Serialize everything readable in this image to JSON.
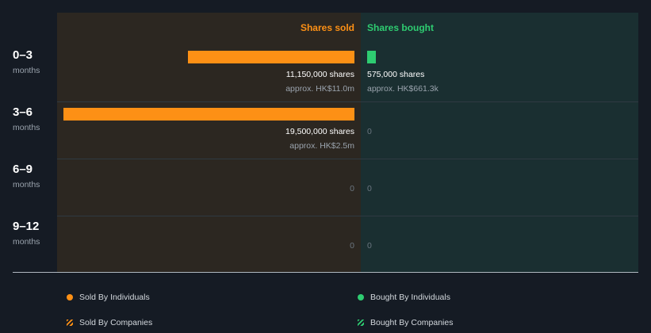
{
  "chart_data": {
    "type": "bar",
    "title": "",
    "headers": {
      "sold": "Shares sold",
      "bought": "Shares bought"
    },
    "colors": {
      "sold": "#fd9015",
      "bought": "#2ecc71"
    },
    "max_value": 19500000,
    "rows": [
      {
        "range": "0–3",
        "unit": "months",
        "sold": 11150000,
        "sold_label": "11,150,000 shares",
        "sold_sub": "approx. HK$11.0m",
        "bought": 575000,
        "bought_label": "575,000 shares",
        "bought_sub": "approx. HK$661.3k"
      },
      {
        "range": "3–6",
        "unit": "months",
        "sold": 19500000,
        "sold_label": "19,500,000 shares",
        "sold_sub": "approx. HK$2.5m",
        "bought": 0,
        "bought_label": "0",
        "bought_sub": ""
      },
      {
        "range": "6–9",
        "unit": "months",
        "sold": 0,
        "sold_label": "0",
        "sold_sub": "",
        "bought": 0,
        "bought_label": "0",
        "bought_sub": ""
      },
      {
        "range": "9–12",
        "unit": "months",
        "sold": 0,
        "sold_label": "0",
        "sold_sub": "",
        "bought": 0,
        "bought_label": "0",
        "bought_sub": ""
      }
    ],
    "legend": [
      {
        "label": "Sold By Individuals",
        "style": "dot",
        "color": "#fd9015"
      },
      {
        "label": "Bought By Individuals",
        "style": "dot",
        "color": "#2ecc71"
      },
      {
        "label": "Sold By Companies",
        "style": "hatch",
        "color": "#fd9015"
      },
      {
        "label": "Bought By Companies",
        "style": "hatch",
        "color": "#2ecc71"
      }
    ]
  }
}
